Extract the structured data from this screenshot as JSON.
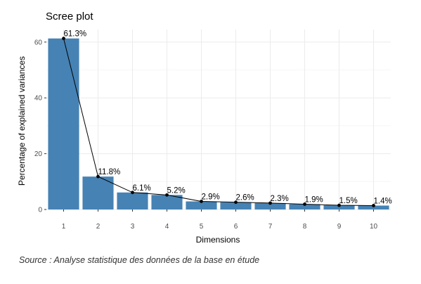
{
  "chart_data": {
    "type": "bar",
    "title": "Scree plot",
    "xlabel": "Dimensions",
    "ylabel": "Percentage of explained variances",
    "categories": [
      "1",
      "2",
      "3",
      "4",
      "5",
      "6",
      "7",
      "8",
      "9",
      "10"
    ],
    "values": [
      61.3,
      11.8,
      6.1,
      5.2,
      2.9,
      2.6,
      2.3,
      1.9,
      1.5,
      1.4
    ],
    "data_labels": [
      "61.3%",
      "11.8%",
      "6.1%",
      "5.2%",
      "2.9%",
      "2.6%",
      "2.3%",
      "1.9%",
      "1.5%",
      "1.4%"
    ],
    "y_ticks": [
      0,
      20,
      40,
      60
    ],
    "ylim": [
      0,
      64.5
    ],
    "grid": true,
    "overlay_line": true,
    "colors": {
      "bar": "#4682B4",
      "line": "#000000",
      "grid_major": "#ebebeb",
      "grid_minor": "#f5f5f5"
    }
  },
  "source": "Source : Analyse statistique des données de la base en étude"
}
